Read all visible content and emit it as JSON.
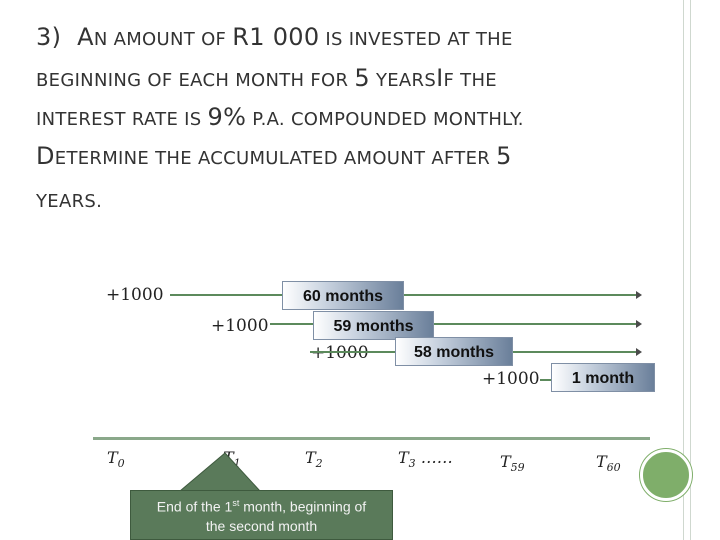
{
  "title": {
    "line1_num": "3)",
    "line1_cap": "A",
    "line1_sc": "N AMOUNT OF ",
    "line1_big": "R1 000",
    "line1_sc2": " IS INVESTED AT THE",
    "line2_sc": "BEGINNING OF EACH MONTH FOR ",
    "line2_big": "5",
    "line2_sc2": " YEARS",
    "line2_cap": "I",
    "line2_sc3": "F THE",
    "line3_sc": "INTEREST RATE IS ",
    "line3_big": "9%",
    "line3_sc2": " P.A. COMPOUNDED MONTHLY.",
    "line4_cap": "D",
    "line4_sc": "ETERMINE THE ACCUMULATED AMOUNT AFTER ",
    "line4_big": "5",
    "line5_sc": "YEARS."
  },
  "payments": [
    {
      "amount": "+1000",
      "period": "60 months"
    },
    {
      "amount": "+1000",
      "period": "59 months"
    },
    {
      "amount": "+1000",
      "period": "58 months"
    },
    {
      "amount": "+1000",
      "period": "1 month"
    }
  ],
  "timeline": {
    "labels": [
      {
        "base": "T",
        "sub": "0"
      },
      {
        "base": "T",
        "sub": "1"
      },
      {
        "base": "T",
        "sub": "2"
      },
      {
        "base": "T",
        "sub": "3"
      },
      {
        "base": "T",
        "sub": "59"
      },
      {
        "base": "T",
        "sub": "60"
      }
    ],
    "ellipsis": "……"
  },
  "callout": {
    "text_a": "End of the 1",
    "sup": "st",
    "text_b": " month, beginning of",
    "text_c": "the second month"
  },
  "colors": {
    "green_line": "#5c8a5c",
    "callout_bg": "#5a7a5a",
    "circle": "#7fae6a"
  }
}
